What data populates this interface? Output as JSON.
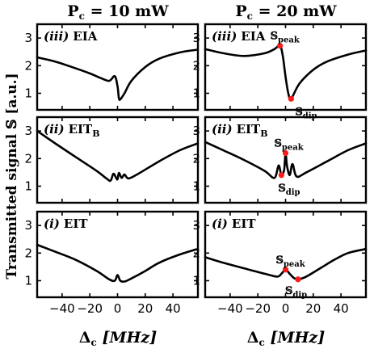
{
  "column_titles": [
    {
      "main": "P",
      "sub": "c",
      "rest": " = 10 mW"
    },
    {
      "main": "P",
      "sub": "c",
      "rest": " = 20 mW"
    }
  ],
  "row_labels": [
    {
      "roman": "(iii)",
      "name": "EIA",
      "sub": ""
    },
    {
      "roman": "(ii)",
      "name": "EIT",
      "sub": "B"
    },
    {
      "roman": "(i)",
      "name": "EIT",
      "sub": ""
    }
  ],
  "ylabel": "Transmitted signal 𝕊 [a.u.]",
  "xlabel": {
    "main": "Δ",
    "sub": "c",
    "rest": " [MHz]"
  },
  "marker_color": "#ff1a1a",
  "chart_data": [
    {
      "type": "line",
      "row": 0,
      "col": 0,
      "xlim": [
        -58,
        58
      ],
      "ylim": [
        0.4,
        3.5
      ],
      "yticks": [
        1,
        2,
        3
      ],
      "xticks": [
        -40,
        -20,
        0,
        20,
        40
      ],
      "series": [
        {
          "x": [
            -58,
            -45,
            -30,
            -20,
            -12,
            -6,
            -2,
            0,
            1,
            2,
            5,
            10,
            20,
            30,
            45,
            58
          ],
          "y": [
            2.3,
            2.15,
            1.9,
            1.72,
            1.55,
            1.45,
            1.62,
            1.25,
            0.82,
            0.78,
            1.0,
            1.45,
            1.95,
            2.25,
            2.48,
            2.58
          ]
        }
      ],
      "annotations": []
    },
    {
      "type": "line",
      "row": 0,
      "col": 1,
      "xlim": [
        -58,
        58
      ],
      "ylim": [
        0.4,
        3.5
      ],
      "yticks": [
        1,
        2,
        3
      ],
      "xticks": [
        -40,
        -20,
        0,
        20,
        40
      ],
      "series": [
        {
          "x": [
            -58,
            -45,
            -30,
            -15,
            -8,
            -4,
            -2,
            0,
            2,
            4,
            10,
            20,
            30,
            45,
            58
          ],
          "y": [
            2.6,
            2.45,
            2.35,
            2.45,
            2.6,
            2.72,
            2.35,
            1.6,
            1.0,
            0.8,
            1.35,
            1.85,
            2.15,
            2.4,
            2.55
          ]
        }
      ],
      "annotations": [
        {
          "label": "𝕊",
          "sub": "peak",
          "x": -4,
          "y": 2.72
        },
        {
          "label": "𝕊",
          "sub": "dip",
          "x": 4,
          "y": 0.8
        }
      ]
    },
    {
      "type": "line",
      "row": 1,
      "col": 0,
      "xlim": [
        -58,
        58
      ],
      "ylim": [
        0.4,
        3.5
      ],
      "yticks": [
        1,
        2,
        3
      ],
      "xticks": [
        -40,
        -20,
        0,
        20,
        40
      ],
      "series": [
        {
          "x": [
            -58,
            -45,
            -30,
            -15,
            -8,
            -5,
            -3,
            -1,
            0,
            1,
            3,
            5,
            8,
            15,
            30,
            45,
            58
          ],
          "y": [
            3.0,
            2.55,
            2.05,
            1.55,
            1.28,
            1.2,
            1.45,
            1.3,
            1.25,
            1.48,
            1.3,
            1.42,
            1.28,
            1.45,
            1.9,
            2.3,
            2.55
          ]
        }
      ],
      "annotations": []
    },
    {
      "type": "line",
      "row": 1,
      "col": 1,
      "xlim": [
        -58,
        58
      ],
      "ylim": [
        0.4,
        3.5
      ],
      "yticks": [
        1,
        2,
        3
      ],
      "xticks": [
        -40,
        -20,
        0,
        20,
        40
      ],
      "series": [
        {
          "x": [
            -58,
            -45,
            -30,
            -15,
            -8,
            -5,
            -3,
            -1,
            0,
            1,
            3,
            5,
            8,
            15,
            30,
            45,
            58
          ],
          "y": [
            2.6,
            2.3,
            1.95,
            1.55,
            1.3,
            1.75,
            1.4,
            1.6,
            2.2,
            1.75,
            1.4,
            1.8,
            1.35,
            1.5,
            1.9,
            2.3,
            2.55
          ]
        }
      ],
      "annotations": [
        {
          "label": "𝕊",
          "sub": "peak",
          "x": 0,
          "y": 2.2
        },
        {
          "label": "𝕊",
          "sub": "dip",
          "x": -3,
          "y": 1.4
        }
      ]
    },
    {
      "type": "line",
      "row": 2,
      "col": 0,
      "xlim": [
        -58,
        58
      ],
      "ylim": [
        0.4,
        3.5
      ],
      "yticks": [
        1,
        2,
        3
      ],
      "xticks": [
        -40,
        -20,
        0,
        20,
        40
      ],
      "series": [
        {
          "x": [
            -58,
            -45,
            -30,
            -15,
            -6,
            -2,
            0,
            2,
            5,
            10,
            20,
            30,
            45,
            58
          ],
          "y": [
            2.3,
            2.05,
            1.75,
            1.35,
            1.05,
            1.0,
            1.2,
            1.0,
            0.97,
            1.08,
            1.35,
            1.65,
            1.95,
            2.15
          ]
        }
      ],
      "annotations": []
    },
    {
      "type": "line",
      "row": 2,
      "col": 1,
      "xlim": [
        -58,
        58
      ],
      "ylim": [
        0.4,
        3.5
      ],
      "yticks": [
        1,
        2,
        3
      ],
      "xticks": [
        -40,
        -20,
        0,
        20,
        40
      ],
      "series": [
        {
          "x": [
            -58,
            -45,
            -30,
            -15,
            -6,
            -3,
            0,
            3,
            6,
            9,
            15,
            25,
            35,
            45,
            58
          ],
          "y": [
            1.85,
            1.65,
            1.45,
            1.25,
            1.15,
            1.25,
            1.4,
            1.25,
            1.1,
            1.05,
            1.15,
            1.45,
            1.75,
            2.0,
            2.15
          ]
        }
      ],
      "annotations": [
        {
          "label": "𝕊",
          "sub": "peak",
          "x": 0,
          "y": 1.4
        },
        {
          "label": "𝕊",
          "sub": "dip",
          "x": 9,
          "y": 1.05
        }
      ]
    }
  ]
}
